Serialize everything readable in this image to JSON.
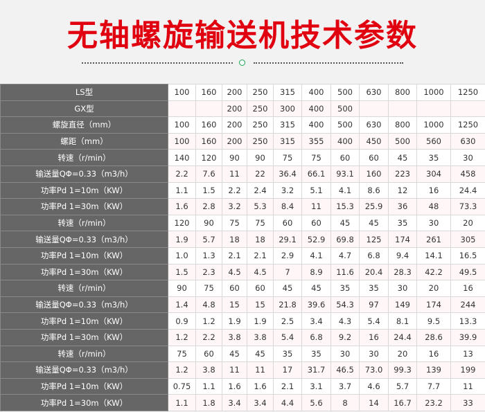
{
  "title": "无轴螺旋输送机技术参数",
  "colors": {
    "title": "#e0000f",
    "label_bg": "#666666",
    "accent_circle": "#1aa34a",
    "alt_row": "#fff7f7"
  },
  "table": {
    "rows": [
      {
        "label": "LS型",
        "values": [
          "100",
          "160",
          "200",
          "250",
          "315",
          "400",
          "500",
          "630",
          "800",
          "1000",
          "1250"
        ]
      },
      {
        "label": "GX型",
        "values": [
          "",
          "",
          "200",
          "250",
          "300",
          "400",
          "500",
          "",
          "",
          "",
          ""
        ]
      },
      {
        "label": "螺旋直径（mm）",
        "values": [
          "100",
          "160",
          "200",
          "250",
          "315",
          "400",
          "500",
          "630",
          "800",
          "1000",
          "1250"
        ]
      },
      {
        "label": "螺距（mm）",
        "values": [
          "100",
          "160",
          "200",
          "250",
          "315",
          "355",
          "400",
          "450",
          "500",
          "560",
          "630"
        ]
      },
      {
        "label": "转速（r/min）",
        "values": [
          "140",
          "120",
          "90",
          "90",
          "75",
          "75",
          "60",
          "60",
          "45",
          "35",
          "30"
        ]
      },
      {
        "label": "输送量QΦ=0.33（m3/h）",
        "values": [
          "2.2",
          "7.6",
          "11",
          "22",
          "36.4",
          "66.1",
          "93.1",
          "160",
          "223",
          "304",
          "458"
        ]
      },
      {
        "label": "功率Pd 1=10m（KW）",
        "values": [
          "1.1",
          "1.5",
          "2.2",
          "2.4",
          "3.2",
          "5.1",
          "4.1",
          "8.6",
          "12",
          "16",
          "24.4"
        ]
      },
      {
        "label": "功率Pd 1=30m（KW）",
        "values": [
          "1.6",
          "2.8",
          "3.2",
          "5.3",
          "8.4",
          "11",
          "15.3",
          "25.9",
          "36",
          "48",
          "73.3"
        ]
      },
      {
        "label": "转速（r/min）",
        "values": [
          "120",
          "90",
          "75",
          "75",
          "60",
          "60",
          "45",
          "45",
          "35",
          "30",
          "20"
        ]
      },
      {
        "label": "输送量QΦ=0.33（m3/h）",
        "values": [
          "1.9",
          "5.7",
          "18",
          "18",
          "29.1",
          "52.9",
          "69.8",
          "125",
          "174",
          "261",
          "305"
        ]
      },
      {
        "label": "功率Pd 1=10m（KW）",
        "values": [
          "1.0",
          "1.3",
          "2.1",
          "2.1",
          "2.9",
          "4.1",
          "4.7",
          "6.8",
          "9.4",
          "14.1",
          "16.5"
        ]
      },
      {
        "label": "功率Pd 1=30m（KW）",
        "values": [
          "1.5",
          "2.3",
          "4.5",
          "4.5",
          "7",
          "8.9",
          "11.6",
          "20.4",
          "28.3",
          "42.2",
          "49.5"
        ]
      },
      {
        "label": "转速（r/min）",
        "values": [
          "90",
          "75",
          "60",
          "60",
          "45",
          "45",
          "35",
          "35",
          "30",
          "20",
          "16"
        ]
      },
      {
        "label": "输送量QΦ=0.33（m3/h）",
        "values": [
          "1.4",
          "4.8",
          "15",
          "15",
          "21.8",
          "39.6",
          "54.3",
          "97",
          "149",
          "174",
          "244"
        ]
      },
      {
        "label": "功率Pd 1=10m（KW）",
        "values": [
          "0.9",
          "1.2",
          "1.9",
          "1.9",
          "2.5",
          "3.4",
          "4.3",
          "5.4",
          "8.1",
          "9.5",
          "13.3"
        ]
      },
      {
        "label": "功率Pd 1=30m（KW）",
        "values": [
          "1.2",
          "2.2",
          "3.8",
          "3.8",
          "5.4",
          "6.8",
          "9.2",
          "16",
          "24.4",
          "28.6",
          "39.9"
        ]
      },
      {
        "label": "转速（r/min）",
        "values": [
          "75",
          "60",
          "45",
          "45",
          "35",
          "35",
          "30",
          "30",
          "20",
          "16",
          "13"
        ]
      },
      {
        "label": "输送量QΦ=0.33（m3/h）",
        "values": [
          "1.2",
          "3.8",
          "11",
          "11",
          "17",
          "31.7",
          "46.5",
          "73.0",
          "99.3",
          "139",
          "199"
        ]
      },
      {
        "label": "功率Pd 1=10m（KW）",
        "values": [
          "0.75",
          "1.1",
          "1.6",
          "1.6",
          "2.1",
          "3.1",
          "3.7",
          "4.6",
          "5.7",
          "7.7",
          "11"
        ]
      },
      {
        "label": "功率Pd 1=30m（KW）",
        "values": [
          "1.1",
          "1.8",
          "3.4",
          "3.4",
          "4.4",
          "5.6",
          "8",
          "14",
          "16.7",
          "23.2",
          "33"
        ]
      }
    ]
  }
}
